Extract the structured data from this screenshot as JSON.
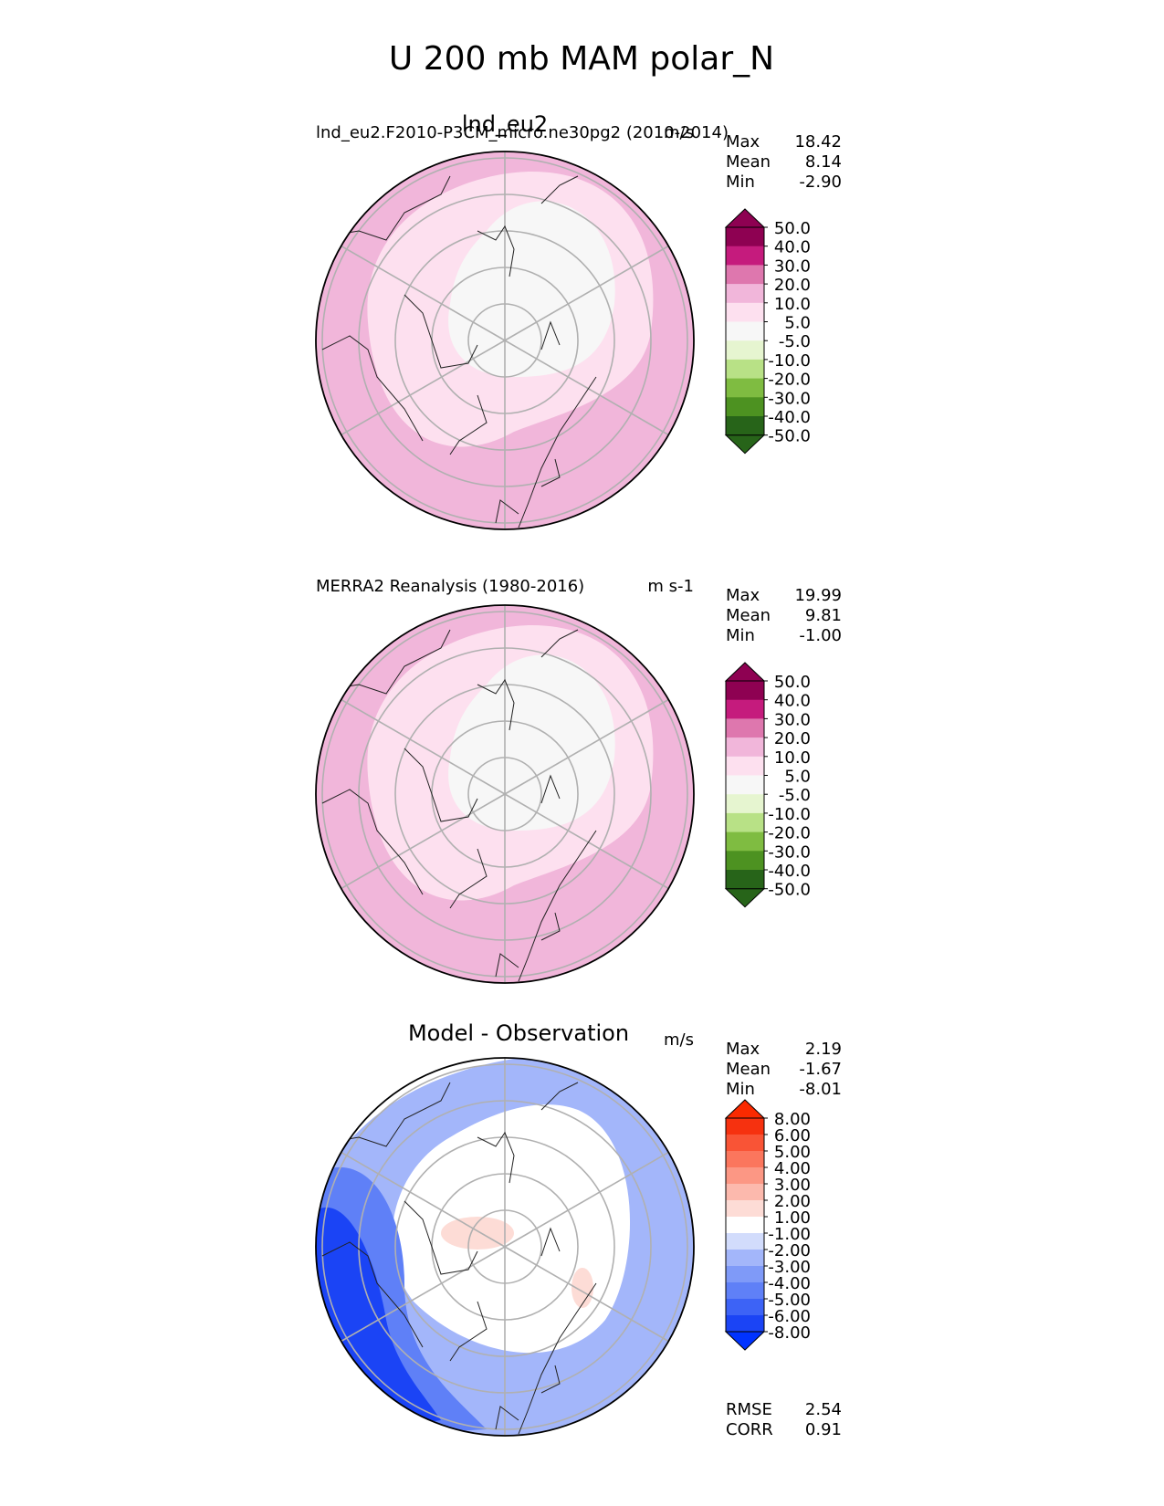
{
  "figure": {
    "title": "U 200 mb MAM polar_N"
  },
  "chart_data": [
    {
      "type": "heatmap",
      "projection": "north-polar-stereographic",
      "title": "lnd_eu2",
      "left_label": "lnd_eu2.F2010-P3CM_micro.ne30pg2 (2010-2014)",
      "units": "m/s",
      "stats": [
        {
          "label": "Max",
          "value": "18.42"
        },
        {
          "label": "Mean",
          "value": "8.14"
        },
        {
          "label": "Min",
          "value": "-2.90"
        }
      ],
      "colorbar": {
        "ticks": [
          "50.0",
          "40.0",
          "30.0",
          "20.0",
          "10.0",
          "5.0",
          "-5.0",
          "-10.0",
          "-20.0",
          "-30.0",
          "-40.0",
          "-50.0"
        ],
        "levels": [
          -50,
          -40,
          -30,
          -20,
          -10,
          -5,
          5,
          10,
          20,
          30,
          40,
          50
        ],
        "colors": [
          "#276419",
          "#4d9221",
          "#7fbc41",
          "#b8e186",
          "#e6f5d0",
          "#f7f7f7",
          "#fde0ef",
          "#f1b6da",
          "#de77ae",
          "#c51b7d",
          "#8e0152"
        ],
        "extend_top_color": "#8e0152",
        "extend_bottom_color": "#276419"
      },
      "field_regions": [
        {
          "value": 15,
          "zone": "outer-ring"
        },
        {
          "value": 8,
          "zone": "mid-ring"
        },
        {
          "value": 2,
          "zone": "polar-cap"
        }
      ]
    },
    {
      "type": "heatmap",
      "projection": "north-polar-stereographic",
      "title": "",
      "left_label": "MERRA2 Reanalysis (1980-2016)",
      "units": "m s-1",
      "stats": [
        {
          "label": "Max",
          "value": "19.99"
        },
        {
          "label": "Mean",
          "value": "9.81"
        },
        {
          "label": "Min",
          "value": "-1.00"
        }
      ],
      "colorbar": {
        "ticks": [
          "50.0",
          "40.0",
          "30.0",
          "20.0",
          "10.0",
          "5.0",
          "-5.0",
          "-10.0",
          "-20.0",
          "-30.0",
          "-40.0",
          "-50.0"
        ],
        "levels": [
          -50,
          -40,
          -30,
          -20,
          -10,
          -5,
          5,
          10,
          20,
          30,
          40,
          50
        ],
        "colors": [
          "#276419",
          "#4d9221",
          "#7fbc41",
          "#b8e186",
          "#e6f5d0",
          "#f7f7f7",
          "#fde0ef",
          "#f1b6da",
          "#de77ae",
          "#c51b7d",
          "#8e0152"
        ],
        "extend_top_color": "#8e0152",
        "extend_bottom_color": "#276419"
      },
      "field_regions": [
        {
          "value": 15,
          "zone": "outer-ring"
        },
        {
          "value": 8,
          "zone": "mid-ring"
        },
        {
          "value": 2,
          "zone": "polar-cap"
        }
      ]
    },
    {
      "type": "heatmap",
      "projection": "north-polar-stereographic",
      "title": "Model - Observation",
      "left_label": "",
      "units": "m/s",
      "stats": [
        {
          "label": "Max",
          "value": "2.19"
        },
        {
          "label": "Mean",
          "value": "-1.67"
        },
        {
          "label": "Min",
          "value": "-8.01"
        }
      ],
      "colorbar": {
        "ticks": [
          "8.00",
          "6.00",
          "5.00",
          "4.00",
          "3.00",
          "2.00",
          "1.00",
          "-1.00",
          "-2.00",
          "-3.00",
          "-4.00",
          "-5.00",
          "-6.00",
          "-8.00"
        ],
        "levels": [
          -8,
          -6,
          -5,
          -4,
          -3,
          -2,
          -1,
          1,
          2,
          3,
          4,
          5,
          6,
          8
        ],
        "colors": [
          "#1b44f5",
          "#3d63f6",
          "#5f80f7",
          "#7f9af8",
          "#a3b6fa",
          "#d2dcfc",
          "#ffffff",
          "#fddcd6",
          "#fcb9ad",
          "#fc9784",
          "#fb765d",
          "#f95436",
          "#f6310f"
        ],
        "extend_top_color": "#fa2a00",
        "extend_bottom_color": "#0033ff"
      },
      "field_regions": [
        {
          "value": -6.5,
          "zone": "western-lobe"
        },
        {
          "value": -2.5,
          "zone": "outer-ring"
        },
        {
          "value": 1.5,
          "zone": "polar-patch"
        }
      ],
      "extra_stats": [
        {
          "label": "RMSE",
          "value": "2.54"
        },
        {
          "label": "CORR",
          "value": "0.91"
        }
      ]
    }
  ]
}
